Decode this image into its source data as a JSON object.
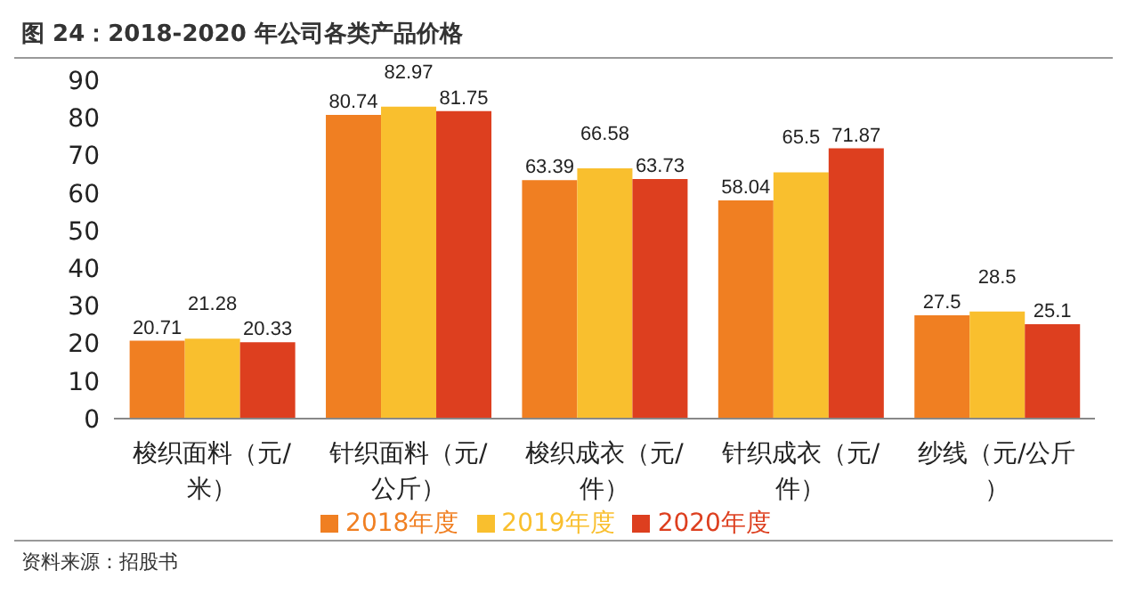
{
  "chart_data": {
    "type": "bar",
    "title": "图 24：2018-2020 年公司各类产品价格",
    "categories": [
      "梭织面料（元/米）",
      "针织面料（元/公斤）",
      "梭织成衣（元/件）",
      "针织成衣（元/件）",
      "纱线（元/公斤）"
    ],
    "series": [
      {
        "name": "2018年度",
        "color": "#f07f22",
        "values": [
          20.71,
          80.74,
          63.39,
          58.04,
          27.5
        ]
      },
      {
        "name": "2019年度",
        "color": "#f9bf2e",
        "values": [
          21.28,
          82.97,
          66.58,
          65.5,
          28.5
        ]
      },
      {
        "name": "2020年度",
        "color": "#dd3f1f",
        "values": [
          20.33,
          81.75,
          63.73,
          71.87,
          25.1
        ]
      }
    ],
    "ylim": [
      0,
      90
    ],
    "yticks": [
      0,
      10,
      20,
      30,
      40,
      50,
      60,
      70,
      80,
      90
    ],
    "grid": false,
    "legend": "bottom",
    "data_labels": true,
    "annotations": [
      "资料来源：招股书"
    ]
  }
}
